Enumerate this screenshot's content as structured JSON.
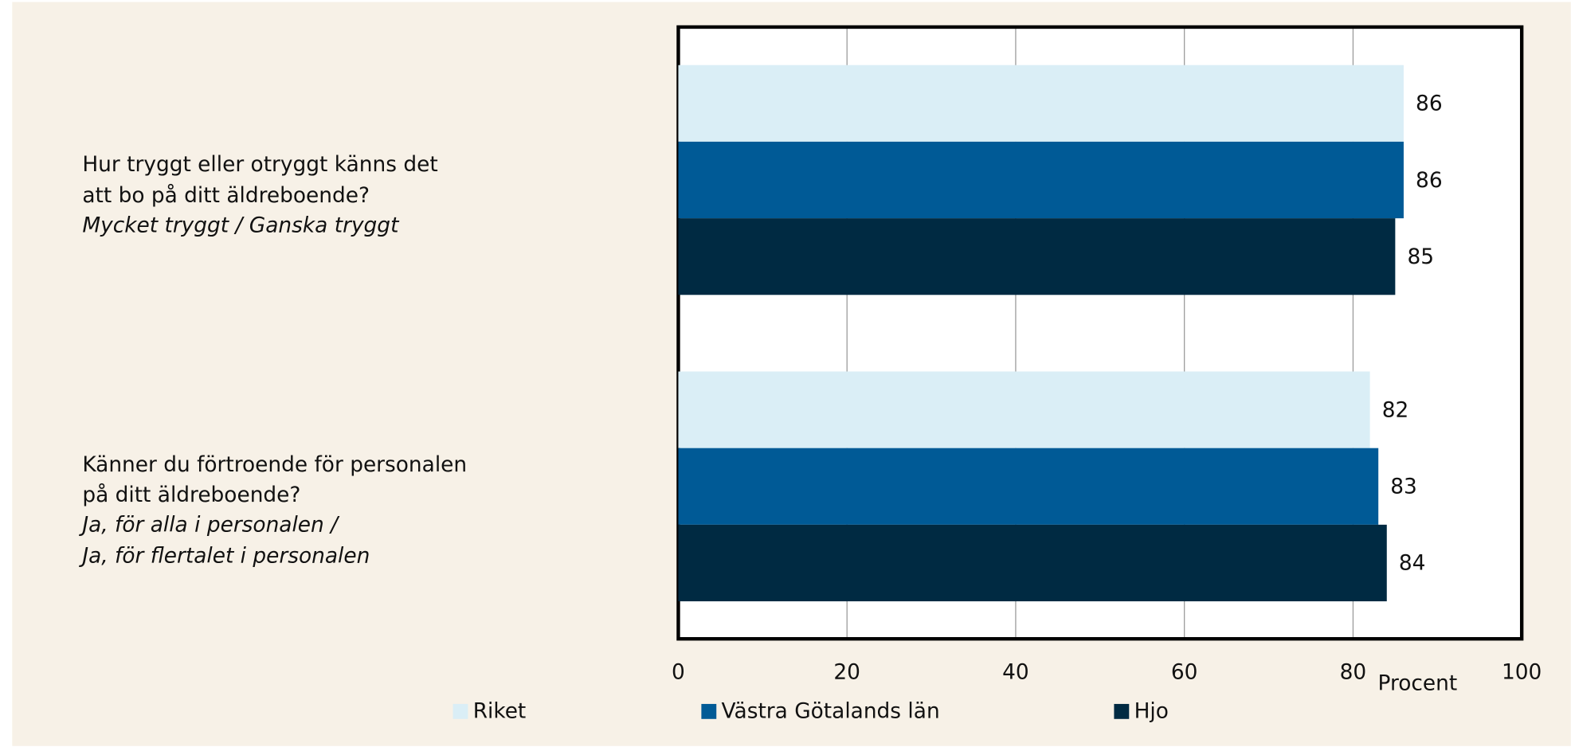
{
  "chart_data": {
    "type": "bar",
    "orientation": "horizontal",
    "categories": [
      [
        "Hur tryggt eller otryggt känns det",
        "att bo på ditt äldreboende?"
      ],
      [
        "Känner du förtroende för personalen",
        "på ditt äldreboende?"
      ]
    ],
    "category_subtitles": [
      [
        "Mycket tryggt / Ganska tryggt"
      ],
      [
        "Ja, för alla i personalen /",
        "Ja, för flertalet i personalen"
      ]
    ],
    "series": [
      {
        "name": "Riket",
        "color": "#daeef6",
        "values": [
          86,
          82
        ]
      },
      {
        "name": "Västra Götalands län",
        "color": "#005a96",
        "values": [
          86,
          83
        ]
      },
      {
        "name": "Hjo",
        "color": "#002a42",
        "values": [
          85,
          84
        ]
      }
    ],
    "xlabel": "Procent",
    "xlim": [
      0,
      100
    ],
    "xticks": [
      0,
      20,
      40,
      60,
      80,
      100
    ],
    "grid": true,
    "legend": "bottom"
  }
}
